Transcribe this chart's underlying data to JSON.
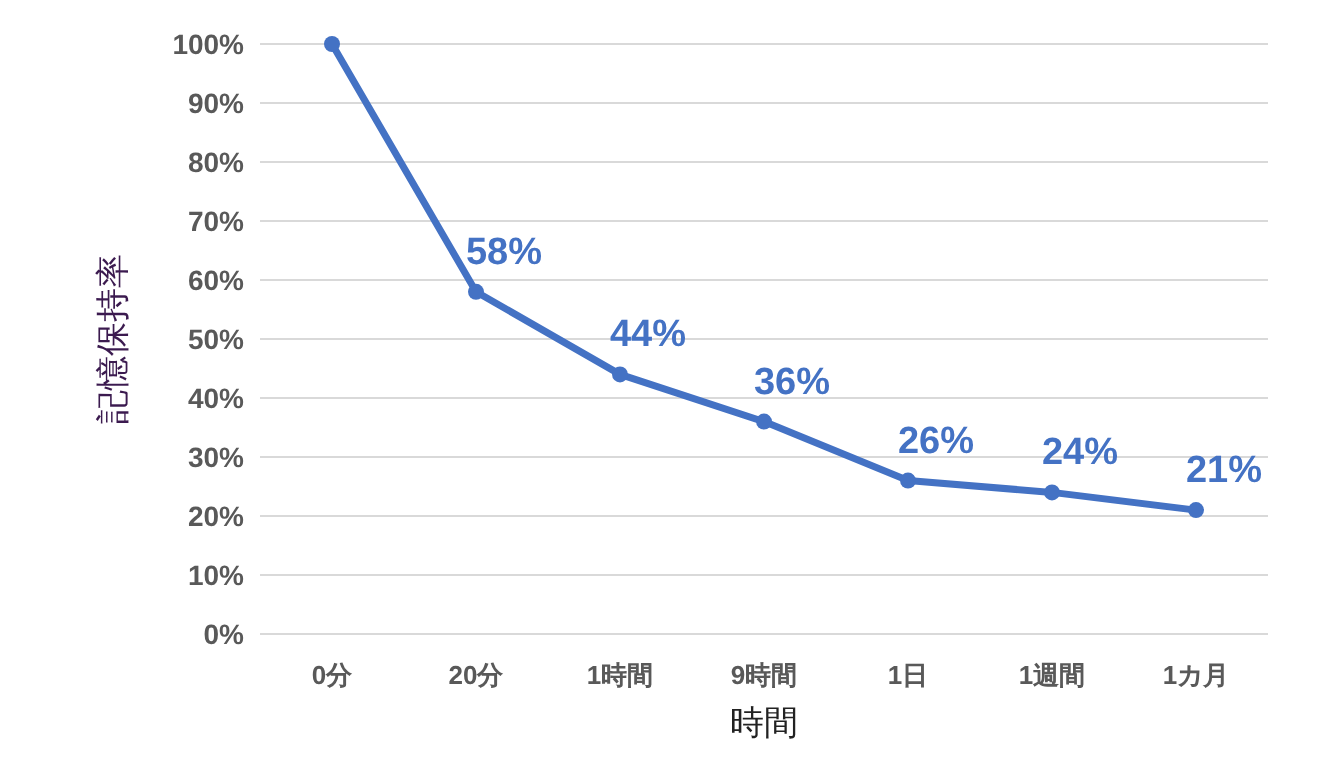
{
  "chart_data": {
    "type": "line",
    "xlabel": "時間",
    "ylabel": "記憶保持率",
    "categories": [
      "0分",
      "20分",
      "1時間",
      "9時間",
      "1日",
      "1週間",
      "1カ月"
    ],
    "series": [
      {
        "color": "#4472c4",
        "values": [
          100,
          58,
          44,
          36,
          26,
          24,
          21
        ],
        "value_labels": [
          null,
          "58%",
          "44%",
          "36%",
          "26%",
          "24%",
          "21%"
        ]
      }
    ],
    "ylim": [
      0,
      100
    ],
    "yticks": [
      {
        "value": 0,
        "label": "0%"
      },
      {
        "value": 10,
        "label": "10%"
      },
      {
        "value": 20,
        "label": "20%"
      },
      {
        "value": 30,
        "label": "30%"
      },
      {
        "value": 40,
        "label": "40%"
      },
      {
        "value": 50,
        "label": "50%"
      },
      {
        "value": 60,
        "label": "60%"
      },
      {
        "value": 70,
        "label": "70%"
      },
      {
        "value": 80,
        "label": "80%"
      },
      {
        "value": 90,
        "label": "90%"
      },
      {
        "value": 100,
        "label": "100%"
      }
    ],
    "grid": "y",
    "marker": "circle",
    "line_style": "solid"
  }
}
